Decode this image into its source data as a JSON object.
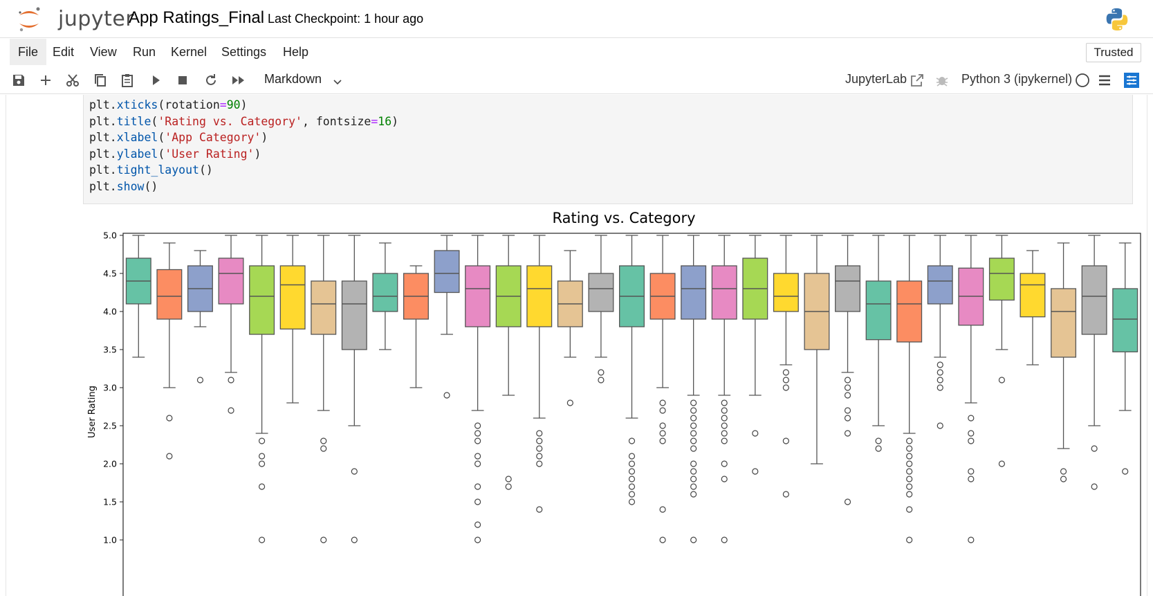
{
  "header": {
    "logo_text": "jupyter",
    "notebook_title": "App Ratings_Final",
    "checkpoint": "Last Checkpoint: 1 hour ago"
  },
  "menu": {
    "items": [
      "File",
      "Edit",
      "View",
      "Run",
      "Kernel",
      "Settings",
      "Help"
    ],
    "active": "File",
    "trusted_label": "Trusted"
  },
  "toolbar": {
    "cell_type": "Markdown",
    "jupyterlab_label": "JupyterLab",
    "kernel_name": "Python 3 (ipykernel)"
  },
  "code_cell": {
    "lines": [
      [
        {
          "t": "plt."
        },
        {
          "t": "xticks",
          "c": "attr"
        },
        {
          "t": "(rotation"
        },
        {
          "t": "=",
          "c": "op"
        },
        {
          "t": "90",
          "c": "num"
        },
        {
          "t": ")"
        }
      ],
      [
        {
          "t": "plt."
        },
        {
          "t": "title",
          "c": "attr"
        },
        {
          "t": "("
        },
        {
          "t": "'Rating vs. Category'",
          "c": "str"
        },
        {
          "t": ", fontsize"
        },
        {
          "t": "=",
          "c": "op"
        },
        {
          "t": "16",
          "c": "num"
        },
        {
          "t": ")"
        }
      ],
      [
        {
          "t": "plt."
        },
        {
          "t": "xlabel",
          "c": "attr"
        },
        {
          "t": "("
        },
        {
          "t": "'App Category'",
          "c": "str"
        },
        {
          "t": ")"
        }
      ],
      [
        {
          "t": "plt."
        },
        {
          "t": "ylabel",
          "c": "attr"
        },
        {
          "t": "("
        },
        {
          "t": "'User Rating'",
          "c": "str"
        },
        {
          "t": ")"
        }
      ],
      [
        {
          "t": "plt."
        },
        {
          "t": "tight_layout",
          "c": "attr"
        },
        {
          "t": "()"
        }
      ],
      [
        {
          "t": "plt."
        },
        {
          "t": "show",
          "c": "attr"
        },
        {
          "t": "()"
        }
      ]
    ]
  },
  "chart_data": {
    "type": "box",
    "title": "Rating vs. Category",
    "ylabel": "User Rating",
    "xlabel": "",
    "ylim": [
      0.9,
      5.1
    ],
    "yticks": [
      1.0,
      1.5,
      2.0,
      2.5,
      3.0,
      3.5,
      4.0,
      4.5,
      5.0
    ],
    "ytick_labels": [
      "1.0",
      "1.5",
      "2.0",
      "2.5",
      "3.0",
      "3.5",
      "4.0",
      "4.5",
      "5.0"
    ],
    "grid": false,
    "palette": [
      "#66c2a5",
      "#fc8d62",
      "#8da0cb",
      "#e78ac3",
      "#a6d854",
      "#ffd92f",
      "#e5c494",
      "#b3b3b3"
    ],
    "boxes": [
      {
        "q1": 4.1,
        "median": 4.4,
        "q3": 4.7,
        "whislo": 3.4,
        "whishi": 5.0,
        "fliers": []
      },
      {
        "q1": 3.9,
        "median": 4.2,
        "q3": 4.55,
        "whislo": 3.0,
        "whishi": 4.9,
        "fliers": [
          2.6,
          2.1
        ]
      },
      {
        "q1": 4.0,
        "median": 4.3,
        "q3": 4.6,
        "whislo": 3.8,
        "whishi": 4.8,
        "fliers": [
          3.1
        ]
      },
      {
        "q1": 4.1,
        "median": 4.5,
        "q3": 4.7,
        "whislo": 3.2,
        "whishi": 5.0,
        "fliers": [
          3.1,
          2.7
        ]
      },
      {
        "q1": 3.7,
        "median": 4.2,
        "q3": 4.6,
        "whislo": 2.4,
        "whishi": 5.0,
        "fliers": [
          2.3,
          2.1,
          2.0,
          1.7,
          1.0
        ]
      },
      {
        "q1": 3.77,
        "median": 4.35,
        "q3": 4.6,
        "whislo": 2.8,
        "whishi": 5.0,
        "fliers": []
      },
      {
        "q1": 3.7,
        "median": 4.1,
        "q3": 4.4,
        "whislo": 2.7,
        "whishi": 5.0,
        "fliers": [
          2.3,
          2.2,
          1.0
        ]
      },
      {
        "q1": 3.5,
        "median": 4.1,
        "q3": 4.4,
        "whislo": 2.5,
        "whishi": 5.0,
        "fliers": [
          1.9,
          1.0
        ]
      },
      {
        "q1": 4.0,
        "median": 4.2,
        "q3": 4.5,
        "whislo": 3.5,
        "whishi": 4.9,
        "fliers": []
      },
      {
        "q1": 3.9,
        "median": 4.2,
        "q3": 4.5,
        "whislo": 3.0,
        "whishi": 4.6,
        "fliers": []
      },
      {
        "q1": 4.25,
        "median": 4.5,
        "q3": 4.8,
        "whislo": 3.7,
        "whishi": 5.0,
        "fliers": [
          2.9
        ]
      },
      {
        "q1": 3.8,
        "median": 4.3,
        "q3": 4.6,
        "whislo": 2.7,
        "whishi": 5.0,
        "fliers": [
          2.5,
          2.4,
          2.3,
          2.1,
          2.0,
          1.7,
          1.5,
          1.2,
          1.0
        ]
      },
      {
        "q1": 3.8,
        "median": 4.2,
        "q3": 4.6,
        "whislo": 2.9,
        "whishi": 5.0,
        "fliers": [
          1.8,
          1.7
        ]
      },
      {
        "q1": 3.8,
        "median": 4.3,
        "q3": 4.6,
        "whislo": 2.6,
        "whishi": 5.0,
        "fliers": [
          2.4,
          2.3,
          2.2,
          2.1,
          2.0,
          1.4
        ]
      },
      {
        "q1": 3.8,
        "median": 4.1,
        "q3": 4.4,
        "whislo": 3.4,
        "whishi": 4.8,
        "fliers": [
          2.8
        ]
      },
      {
        "q1": 4.0,
        "median": 4.3,
        "q3": 4.5,
        "whislo": 3.4,
        "whishi": 5.0,
        "fliers": [
          3.2,
          3.1
        ]
      },
      {
        "q1": 3.8,
        "median": 4.2,
        "q3": 4.6,
        "whislo": 2.6,
        "whishi": 5.0,
        "fliers": [
          2.3,
          2.1,
          2.0,
          1.9,
          1.8,
          1.7,
          1.6,
          1.5
        ]
      },
      {
        "q1": 3.9,
        "median": 4.2,
        "q3": 4.5,
        "whislo": 3.0,
        "whishi": 5.0,
        "fliers": [
          2.8,
          2.7,
          2.5,
          2.4,
          2.3,
          1.4,
          1.0
        ]
      },
      {
        "q1": 3.9,
        "median": 4.3,
        "q3": 4.6,
        "whislo": 2.9,
        "whishi": 5.0,
        "fliers": [
          2.8,
          2.7,
          2.6,
          2.5,
          2.4,
          2.3,
          2.2,
          2.0,
          1.9,
          1.8,
          1.7,
          1.6,
          1.0
        ]
      },
      {
        "q1": 3.9,
        "median": 4.3,
        "q3": 4.6,
        "whislo": 2.9,
        "whishi": 5.0,
        "fliers": [
          2.8,
          2.7,
          2.6,
          2.5,
          2.4,
          2.3,
          2.0,
          1.8,
          1.0
        ]
      },
      {
        "q1": 3.9,
        "median": 4.3,
        "q3": 4.7,
        "whislo": 2.9,
        "whishi": 5.0,
        "fliers": [
          2.4,
          1.9
        ]
      },
      {
        "q1": 4.0,
        "median": 4.2,
        "q3": 4.5,
        "whislo": 3.3,
        "whishi": 5.0,
        "fliers": [
          3.2,
          3.1,
          3.0,
          2.3,
          1.6
        ]
      },
      {
        "q1": 3.5,
        "median": 4.0,
        "q3": 4.5,
        "whislo": 2.0,
        "whishi": 5.0,
        "fliers": []
      },
      {
        "q1": 4.0,
        "median": 4.4,
        "q3": 4.6,
        "whislo": 3.2,
        "whishi": 5.0,
        "fliers": [
          3.1,
          3.0,
          2.9,
          2.7,
          2.6,
          2.4,
          1.5
        ]
      },
      {
        "q1": 3.63,
        "median": 4.1,
        "q3": 4.4,
        "whislo": 2.5,
        "whishi": 5.0,
        "fliers": [
          2.3,
          2.2
        ]
      },
      {
        "q1": 3.6,
        "median": 4.1,
        "q3": 4.4,
        "whislo": 2.4,
        "whishi": 5.0,
        "fliers": [
          2.3,
          2.2,
          2.1,
          2.0,
          1.9,
          1.8,
          1.7,
          1.6,
          1.4,
          1.0
        ]
      },
      {
        "q1": 4.1,
        "median": 4.4,
        "q3": 4.6,
        "whislo": 3.4,
        "whishi": 5.0,
        "fliers": [
          3.3,
          3.2,
          3.1,
          3.0,
          2.5
        ]
      },
      {
        "q1": 3.82,
        "median": 4.2,
        "q3": 4.57,
        "whislo": 2.8,
        "whishi": 5.0,
        "fliers": [
          2.6,
          2.4,
          2.3,
          1.9,
          1.8,
          1.0
        ]
      },
      {
        "q1": 4.15,
        "median": 4.5,
        "q3": 4.7,
        "whislo": 3.5,
        "whishi": 5.0,
        "fliers": [
          3.1,
          2.0
        ]
      },
      {
        "q1": 3.93,
        "median": 4.35,
        "q3": 4.5,
        "whislo": 3.3,
        "whishi": 4.8,
        "fliers": []
      },
      {
        "q1": 3.4,
        "median": 4.0,
        "q3": 4.3,
        "whislo": 2.2,
        "whishi": 4.9,
        "fliers": [
          1.9,
          1.8
        ]
      },
      {
        "q1": 3.7,
        "median": 4.2,
        "q3": 4.6,
        "whislo": 2.5,
        "whishi": 5.0,
        "fliers": [
          2.2,
          1.7
        ]
      },
      {
        "q1": 3.47,
        "median": 3.9,
        "q3": 4.3,
        "whislo": 2.7,
        "whishi": 4.9,
        "fliers": [
          1.9
        ]
      }
    ]
  }
}
